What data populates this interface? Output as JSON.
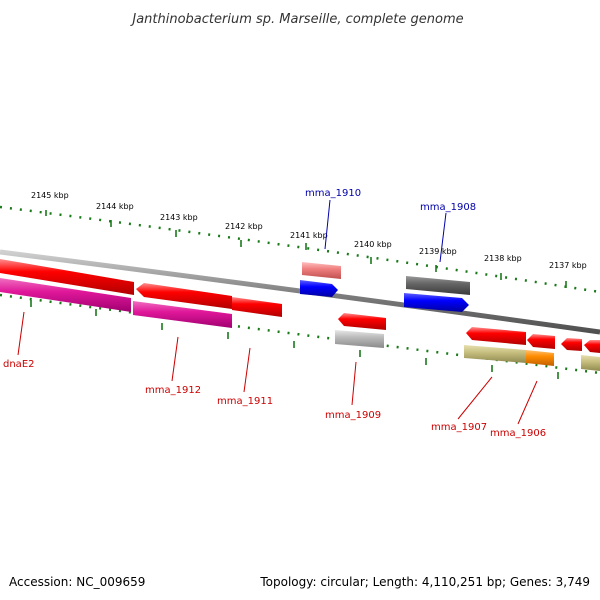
{
  "title": "Janthinobacterium sp. Marseille, complete genome",
  "footer": {
    "accession": "Accession: NC_009659",
    "summary": "Topology: circular; Length: 4,110,251 bp; Genes: 3,749"
  },
  "ruler": {
    "ticks": [
      "2145 kbp",
      "2144 kbp",
      "2143 kbp",
      "2142 kbp",
      "2141 kbp",
      "2140 kbp",
      "2139 kbp",
      "2138 kbp",
      "2137 kbp"
    ]
  },
  "gene_labels": {
    "dnaE2": "dnaE2",
    "mma_1912": "mma_1912",
    "mma_1911": "mma_1911",
    "mma_1910": "mma_1910",
    "mma_1909": "mma_1909",
    "mma_1908": "mma_1908",
    "mma_1907": "mma_1907",
    "mma_1906": "mma_1906"
  },
  "colors": {
    "backbone": "#808080",
    "cds_red": "#ff0000",
    "cds_magenta": "#e0189a",
    "cds_blue": "#0000ff",
    "cds_gray": "#666666",
    "rna_pink": "#f08080",
    "light_gray": "#bbbbbb",
    "olive": "#c8c080",
    "orange": "#ff8c00",
    "ruler_green": "#1a7a1a",
    "label_red": "#cc0000",
    "label_blue": "#0000aa"
  }
}
